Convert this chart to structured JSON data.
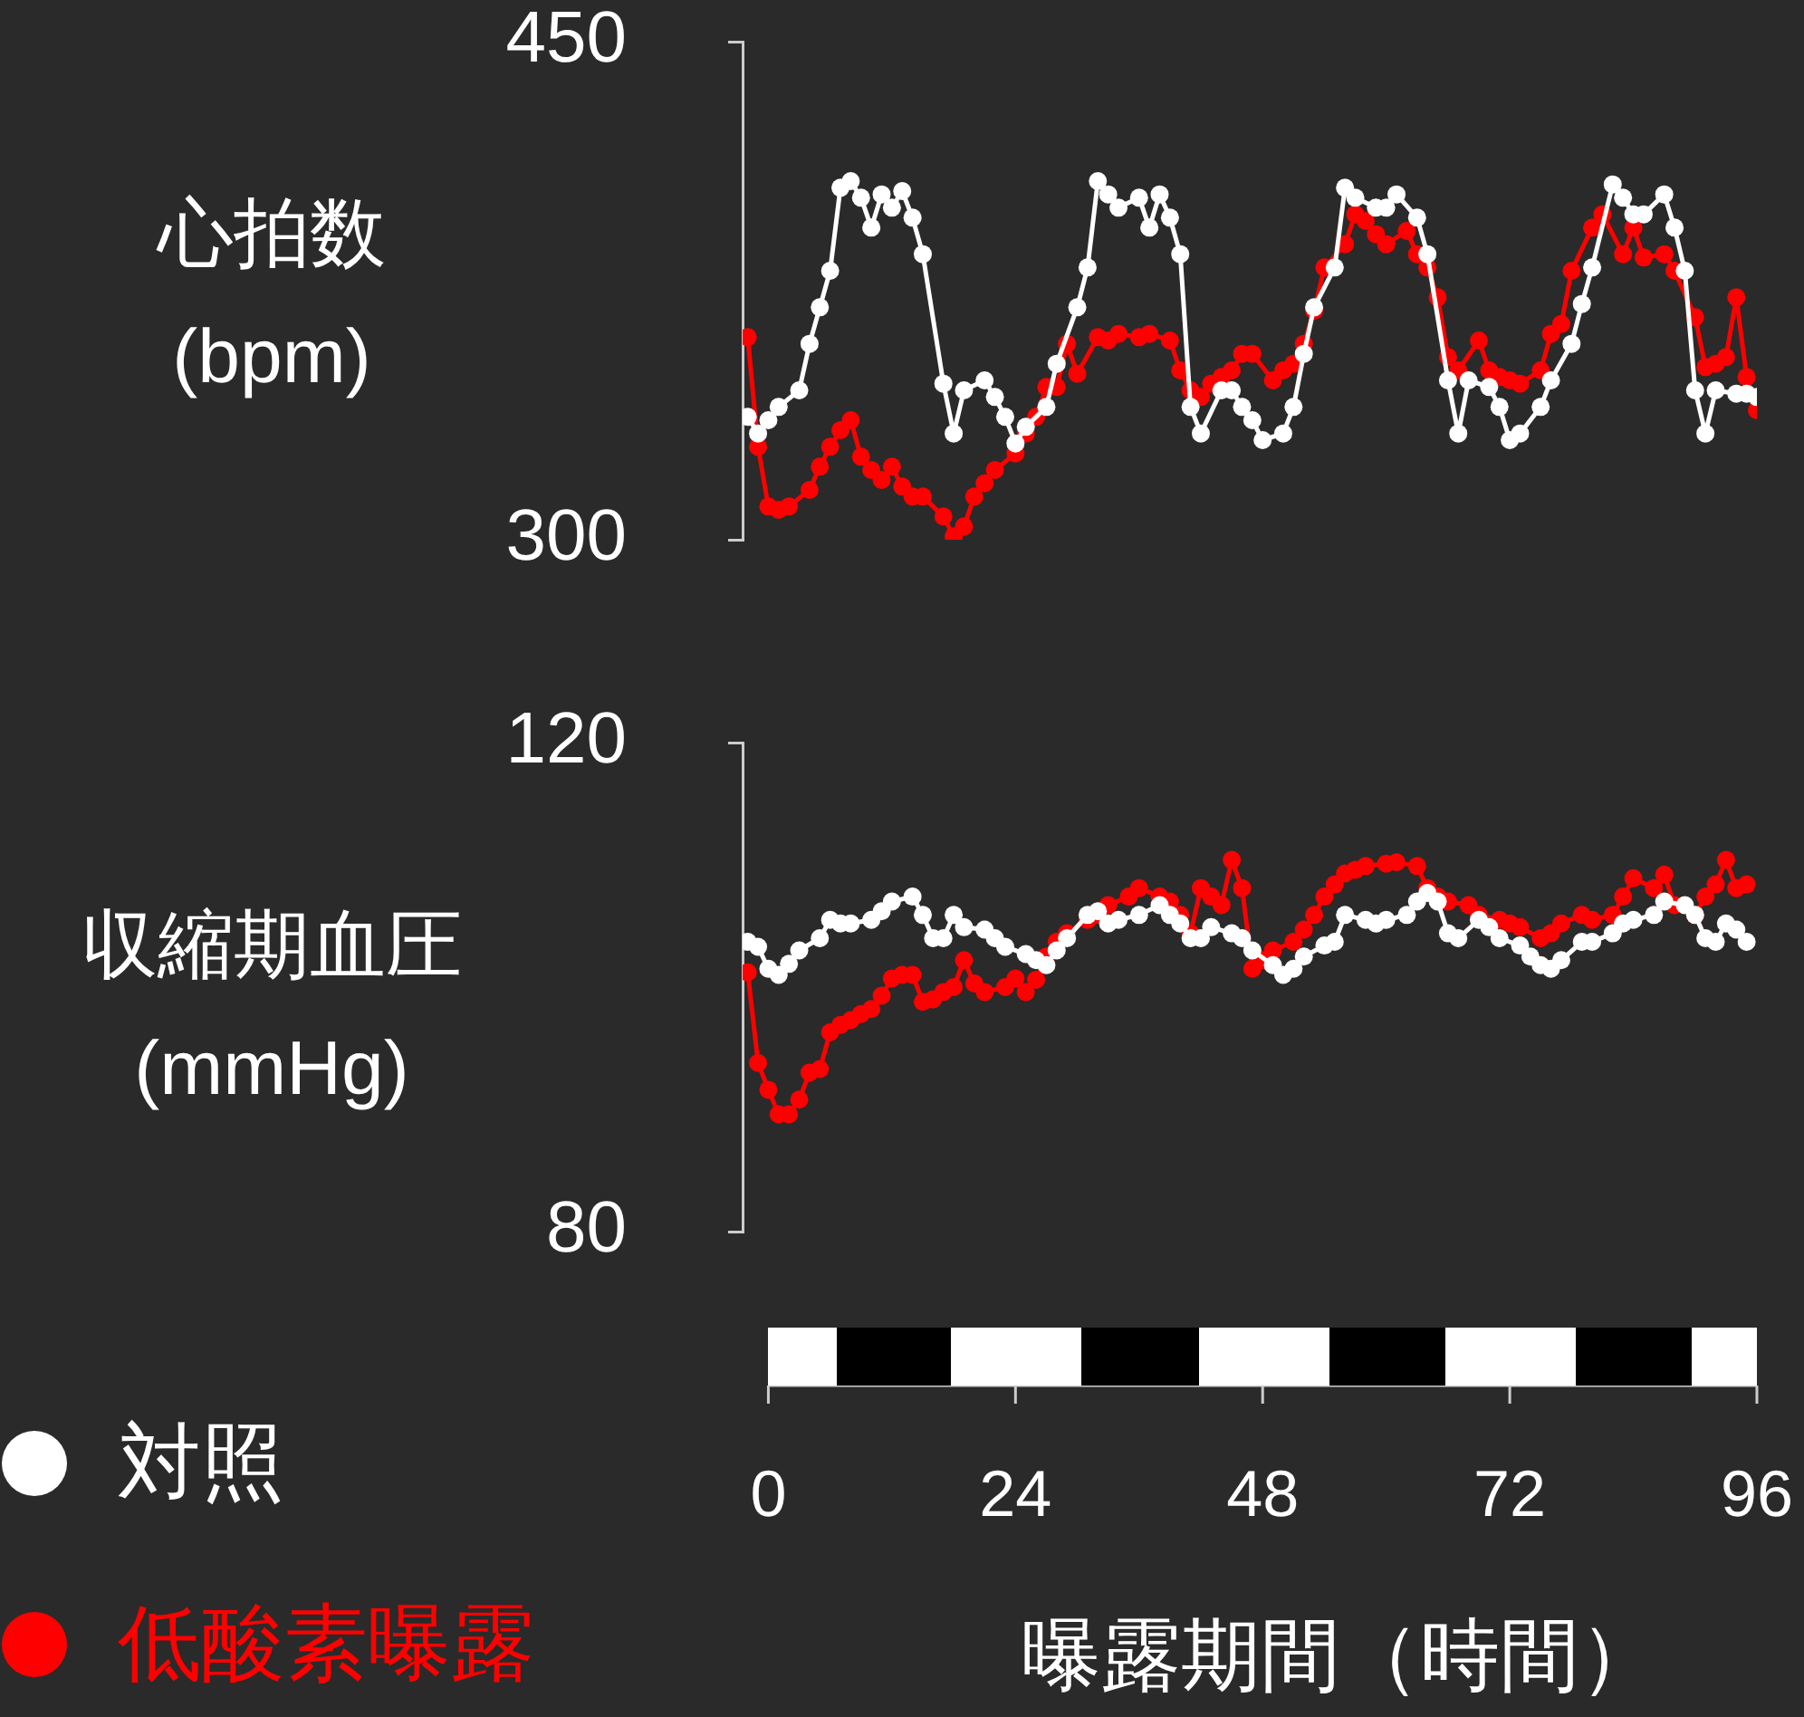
{
  "chart_data": [
    {
      "type": "line",
      "ylabel": "心拍数\n(bpm)",
      "xlim": [
        -2.5,
        96
      ],
      "ylim": [
        300,
        450
      ],
      "yticks": [
        300,
        450
      ],
      "tick_labels": "y",
      "marker": "circle",
      "series": [
        {
          "color": "#ffffff",
          "x": [
            -2,
            -1,
            0,
            1,
            3,
            4,
            5,
            6,
            7,
            8,
            9,
            10,
            11,
            12,
            13,
            14,
            15,
            17,
            18,
            19,
            21,
            22,
            23,
            24,
            25,
            27,
            28,
            30,
            31,
            32,
            33,
            34,
            36,
            37,
            38,
            39,
            40,
            41,
            42,
            44,
            45,
            46,
            47,
            48,
            50,
            51,
            52,
            53,
            55,
            56,
            57,
            59,
            60,
            61,
            63,
            64,
            66,
            67,
            68,
            70,
            71,
            72,
            73,
            75,
            76,
            78,
            79,
            80,
            82,
            83,
            84,
            85,
            87,
            88,
            89,
            90,
            91,
            92,
            94,
            95,
            96
          ],
          "values": [
            337,
            332,
            336,
            340,
            345,
            359,
            370,
            381,
            406,
            408,
            403,
            394,
            404,
            400,
            405,
            397,
            386,
            347,
            332,
            345,
            348,
            343,
            337,
            329,
            334,
            340,
            353,
            370,
            382,
            408,
            404,
            400,
            403,
            394,
            404,
            397,
            386,
            340,
            332,
            345,
            345,
            340,
            336,
            330,
            332,
            340,
            356,
            370,
            382,
            406,
            403,
            400,
            400,
            404,
            397,
            386,
            348,
            332,
            348,
            346,
            340,
            330,
            332,
            340,
            348,
            359,
            371,
            382,
            407,
            403,
            398,
            398,
            404,
            394,
            381,
            345,
            332,
            345,
            344,
            344,
            343
          ]
        },
        {
          "color": "#ff0000",
          "x": [
            -2,
            -1,
            0,
            1,
            2,
            4,
            5,
            6,
            7,
            8,
            9,
            10,
            11,
            12,
            13,
            14,
            15,
            17,
            18,
            19,
            20,
            21,
            22,
            24,
            25,
            26,
            27,
            28,
            29,
            30,
            32,
            33,
            34,
            36,
            37,
            39,
            40,
            41,
            42,
            43,
            44,
            45,
            46,
            47,
            49,
            50,
            51,
            52,
            53,
            54,
            56,
            57,
            58,
            59,
            60,
            62,
            63,
            64,
            65,
            66,
            67,
            69,
            70,
            71,
            72,
            73,
            75,
            76,
            77,
            78,
            80,
            81,
            83,
            84,
            85,
            87,
            88,
            90,
            91,
            92,
            93,
            94,
            95,
            96
          ],
          "values": [
            361,
            328,
            310,
            309,
            310,
            315,
            322,
            328,
            333,
            336,
            325,
            321,
            318,
            322,
            316,
            313,
            313,
            307,
            301,
            304,
            313,
            317,
            321,
            326,
            332,
            337,
            346,
            346,
            359,
            350,
            361,
            360,
            362,
            361,
            362,
            360,
            351,
            345,
            343,
            347,
            349,
            351,
            356,
            356,
            348,
            351,
            353,
            359,
            369,
            382,
            389,
            398,
            396,
            392,
            389,
            393,
            386,
            382,
            373,
            355,
            351,
            360,
            351,
            349,
            348,
            347,
            351,
            362,
            365,
            381,
            394,
            398,
            386,
            394,
            385,
            386,
            381,
            367,
            352,
            353,
            355,
            373,
            349,
            339
          ]
        }
      ]
    },
    {
      "type": "line",
      "ylabel": "収縮期血圧\n(mmHg)",
      "xlabel": "曝露期間（時間）",
      "xlim": [
        -2.5,
        96
      ],
      "xticks": [
        0,
        24,
        48,
        72,
        96
      ],
      "ylim": [
        80,
        120
      ],
      "yticks": [
        80,
        120
      ],
      "marker": "circle",
      "legend": "bottom left",
      "series": [
        {
          "name": "対照",
          "color": "#ffffff",
          "x": [
            -2,
            -1,
            0,
            1,
            2,
            3,
            5,
            6,
            7,
            8,
            10,
            11,
            12,
            14,
            15,
            16,
            17,
            18,
            19,
            21,
            22,
            23,
            25,
            26,
            27,
            28,
            29,
            31,
            32,
            33,
            34,
            36,
            38,
            39,
            40,
            41,
            42,
            43,
            45,
            46,
            47,
            49,
            50,
            51,
            52,
            54,
            55,
            56,
            58,
            59,
            60,
            62,
            63,
            64,
            65,
            66,
            67,
            69,
            70,
            71,
            73,
            74,
            75,
            76,
            77,
            79,
            80,
            82,
            83,
            84,
            86,
            87,
            89,
            90,
            91,
            92,
            93,
            94,
            95
          ],
          "values": [
            103.7,
            103.3,
            101.5,
            101.0,
            101.9,
            103.0,
            104.0,
            105.5,
            105.2,
            105.2,
            105.5,
            106.2,
            107.0,
            107.4,
            105.9,
            104.0,
            104.0,
            105.9,
            104.9,
            104.7,
            104.0,
            103.3,
            102.7,
            102.2,
            101.8,
            103.0,
            104.0,
            105.9,
            106.2,
            105.2,
            105.5,
            105.9,
            106.7,
            105.9,
            105.2,
            104.0,
            104.0,
            104.9,
            104.4,
            104.0,
            103.0,
            101.8,
            101.0,
            101.5,
            102.5,
            103.4,
            103.7,
            105.9,
            105.5,
            105.2,
            105.5,
            105.9,
            107.0,
            107.7,
            107.0,
            104.4,
            104.0,
            105.5,
            104.9,
            104.0,
            103.4,
            102.5,
            101.8,
            101.5,
            102.2,
            103.7,
            103.7,
            104.4,
            105.2,
            105.5,
            105.9,
            107.0,
            106.7,
            105.9,
            104.0,
            103.7,
            105.2,
            104.7,
            103.7
          ]
        },
        {
          "name": "低酸素曝露",
          "color": "#ff0000",
          "x": [
            -2,
            -1,
            0,
            1,
            2,
            3,
            4,
            5,
            6,
            7,
            8,
            9,
            10,
            11,
            12,
            13,
            14,
            15,
            16,
            17,
            18,
            19,
            20,
            21,
            23,
            24,
            25,
            26,
            27,
            28,
            29,
            31,
            32,
            33,
            35,
            36,
            38,
            39,
            40,
            41,
            42,
            43,
            44,
            45,
            46,
            47,
            48,
            49,
            51,
            52,
            53,
            54,
            55,
            56,
            57,
            58,
            60,
            61,
            63,
            64,
            65,
            66,
            68,
            69,
            71,
            72,
            73,
            75,
            76,
            77,
            79,
            80,
            82,
            83,
            84,
            86,
            87,
            88,
            90,
            91,
            92,
            93,
            94,
            95
          ],
          "values": [
            101.2,
            93.8,
            91.6,
            89.6,
            89.6,
            90.8,
            93.0,
            93.3,
            96.3,
            96.9,
            97.3,
            97.8,
            98.2,
            99.3,
            100.7,
            101.0,
            101.0,
            98.8,
            99.0,
            99.6,
            100.0,
            102.2,
            100.3,
            99.6,
            100.0,
            100.7,
            99.6,
            100.6,
            102.5,
            103.7,
            104.4,
            105.5,
            105.9,
            106.7,
            107.4,
            108.1,
            107.4,
            107.0,
            105.9,
            104.4,
            108.1,
            107.4,
            106.7,
            110.4,
            108.1,
            101.5,
            102.2,
            103.0,
            103.7,
            104.7,
            105.9,
            107.4,
            108.4,
            109.3,
            109.6,
            109.9,
            110.1,
            110.2,
            109.9,
            108.1,
            107.4,
            107.0,
            106.7,
            105.9,
            105.5,
            105.2,
            104.9,
            104.0,
            104.4,
            105.2,
            105.9,
            105.5,
            105.9,
            107.4,
            108.9,
            108.1,
            109.2,
            106.7,
            105.9,
            107.4,
            108.4,
            110.4,
            108.1,
            108.4
          ]
        }
      ]
    }
  ]
}
